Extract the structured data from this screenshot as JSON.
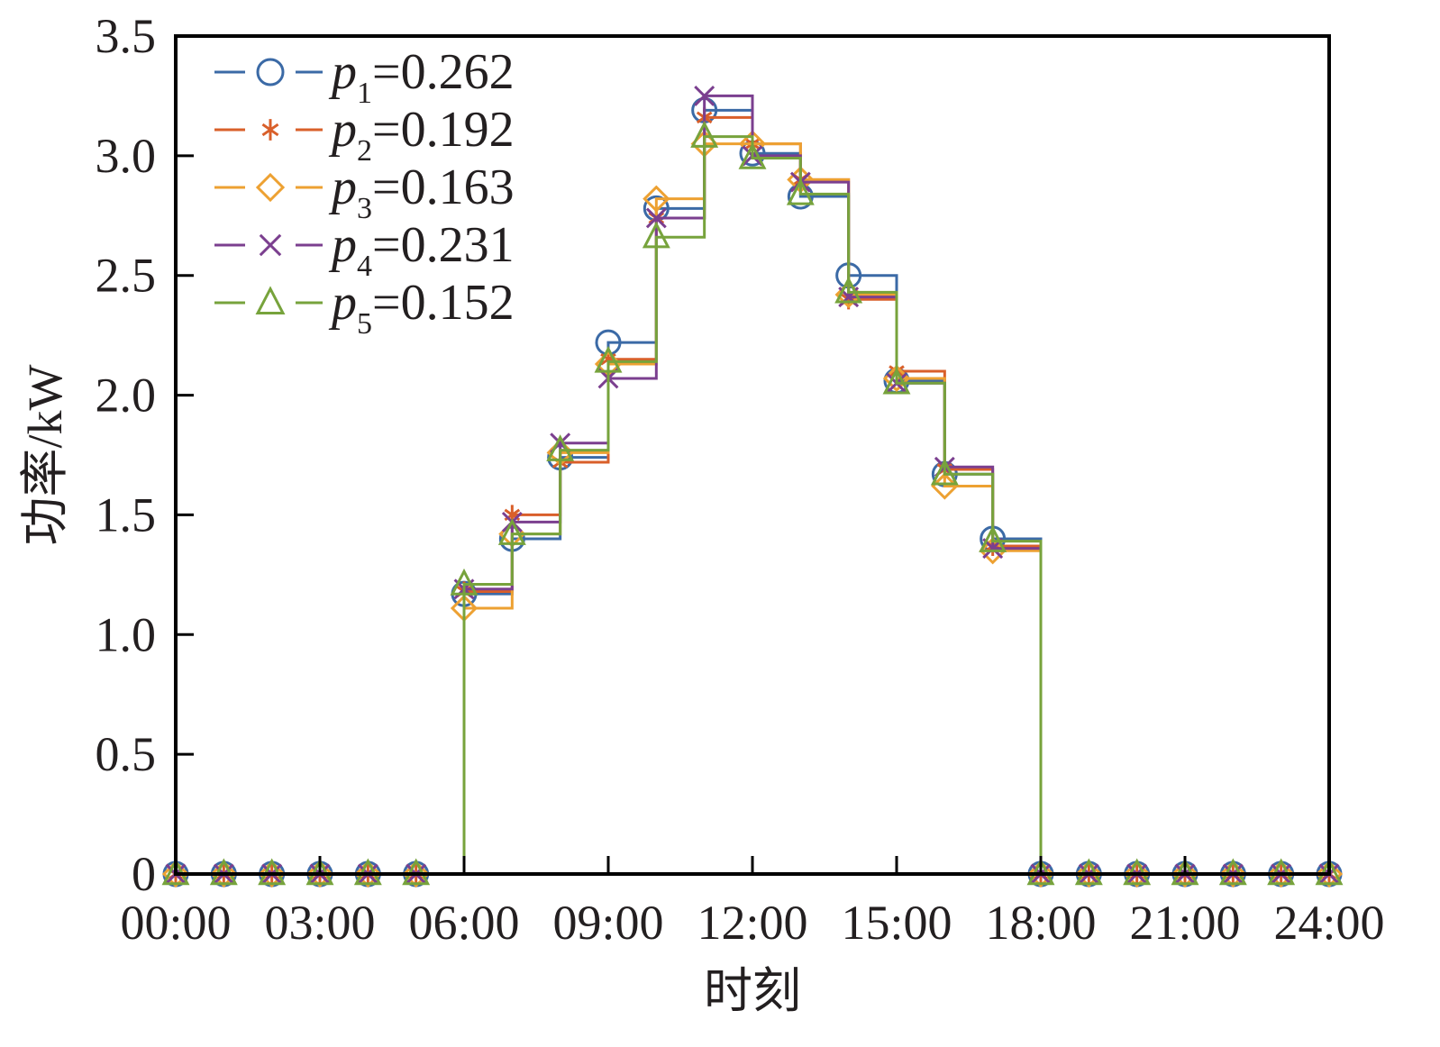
{
  "chart_data": {
    "type": "line",
    "subtype": "step",
    "xlabel": "时刻",
    "ylabel": "功率/kW",
    "x_tick_labels": [
      "00:00",
      "03:00",
      "06:00",
      "09:00",
      "12:00",
      "15:00",
      "18:00",
      "21:00",
      "24:00"
    ],
    "y_tick_labels": [
      "0",
      "0.5",
      "1.0",
      "1.5",
      "2.0",
      "2.5",
      "3.0",
      "3.5"
    ],
    "y_ticks": [
      0,
      0.5,
      1.0,
      1.5,
      2.0,
      2.5,
      3.0,
      3.5
    ],
    "xlim": [
      0,
      24
    ],
    "ylim": [
      0,
      3.5
    ],
    "x_unit": "hour",
    "grid": false,
    "legend_position": "top-left",
    "x": [
      0,
      1,
      2,
      3,
      4,
      5,
      6,
      7,
      8,
      9,
      10,
      11,
      12,
      13,
      14,
      15,
      16,
      17,
      18,
      19,
      20,
      21,
      22,
      23,
      24
    ],
    "series": [
      {
        "name": "p1=0.262",
        "prefix": "p",
        "subscript": "1",
        "value_text": "=0.262",
        "color": "#3b6aa6",
        "marker": "circle",
        "values": [
          0,
          0,
          0,
          0,
          0,
          0,
          1.17,
          1.4,
          1.74,
          2.22,
          2.78,
          3.19,
          3.01,
          2.83,
          2.5,
          2.06,
          1.67,
          1.4,
          0,
          0,
          0,
          0,
          0,
          0,
          0
        ]
      },
      {
        "name": "p2=0.192",
        "prefix": "p",
        "subscript": "2",
        "value_text": "=0.192",
        "color": "#d95f2a",
        "marker": "asterisk",
        "values": [
          0,
          0,
          0,
          0,
          0,
          0,
          1.18,
          1.5,
          1.72,
          2.15,
          2.74,
          3.16,
          3.05,
          2.9,
          2.4,
          2.1,
          1.69,
          1.37,
          0,
          0,
          0,
          0,
          0,
          0,
          0
        ]
      },
      {
        "name": "p3=0.163",
        "prefix": "p",
        "subscript": "3",
        "value_text": "=0.163",
        "color": "#eda132",
        "marker": "diamond",
        "values": [
          0,
          0,
          0,
          0,
          0,
          0,
          1.11,
          1.42,
          1.76,
          2.13,
          2.82,
          3.05,
          3.05,
          2.9,
          2.42,
          2.07,
          1.62,
          1.35,
          0,
          0,
          0,
          0,
          0,
          0,
          0
        ]
      },
      {
        "name": "p4=0.231",
        "prefix": "p",
        "subscript": "4",
        "value_text": "=0.231",
        "color": "#7b3f8f",
        "marker": "x",
        "values": [
          0,
          0,
          0,
          0,
          0,
          0,
          1.19,
          1.47,
          1.8,
          2.07,
          2.74,
          3.25,
          3.0,
          2.89,
          2.41,
          2.05,
          1.7,
          1.36,
          0,
          0,
          0,
          0,
          0,
          0,
          0
        ]
      },
      {
        "name": "p5=0.152",
        "prefix": "p",
        "subscript": "5",
        "value_text": "=0.152",
        "color": "#77a33c",
        "marker": "triangle",
        "values": [
          0,
          0,
          0,
          0,
          0,
          0,
          1.21,
          1.42,
          1.77,
          2.14,
          2.66,
          3.08,
          2.99,
          2.84,
          2.43,
          2.05,
          1.67,
          1.39,
          0,
          0,
          0,
          0,
          0,
          0,
          0
        ]
      }
    ]
  }
}
